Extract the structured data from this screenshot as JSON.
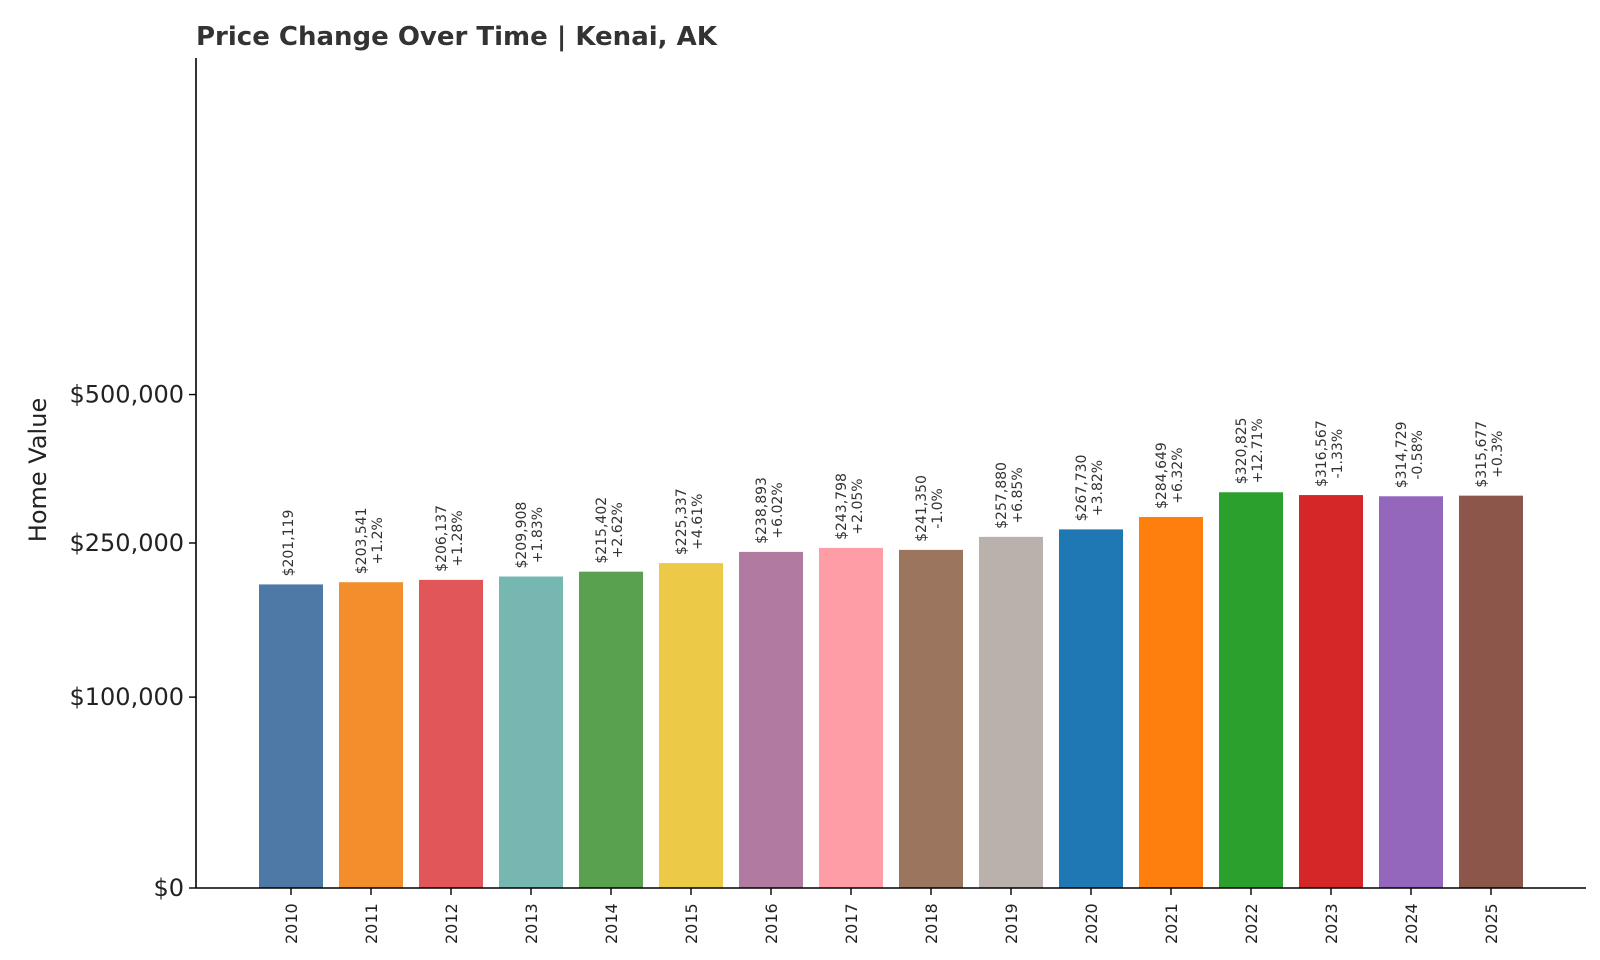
{
  "chart_data": {
    "type": "bar",
    "title": "Price Change Over Time | Kenai, AK",
    "ylabel": "Home Value",
    "xlabel": "",
    "ylim": [
      0,
      500000
    ],
    "yticks": [
      {
        "value": 0,
        "label": "$0"
      },
      {
        "value": 100000,
        "label": "$100,000"
      },
      {
        "value": 250000,
        "label": "$250,000"
      },
      {
        "value": 500000,
        "label": "$500,000"
      }
    ],
    "grid": false,
    "categories": [
      "2010",
      "2011",
      "2012",
      "2013",
      "2014",
      "2015",
      "2016",
      "2017",
      "2018",
      "2019",
      "2020",
      "2021",
      "2022",
      "2023",
      "2024",
      "2025"
    ],
    "values": [
      201119,
      203541,
      206137,
      209908,
      215402,
      225337,
      238893,
      243798,
      241350,
      257880,
      267730,
      284649,
      320825,
      316567,
      314729,
      315677
    ],
    "value_labels": [
      "$201,119",
      "$203,541",
      "$206,137",
      "$209,908",
      "$215,402",
      "$225,337",
      "$238,893",
      "$243,798",
      "$241,350",
      "$257,880",
      "$267,730",
      "$284,649",
      "$320,825",
      "$316,567",
      "$314,729",
      "$315,677"
    ],
    "change_labels": [
      "",
      "+1.2%",
      "+1.28%",
      "+1.83%",
      "+2.62%",
      "+4.61%",
      "+6.02%",
      "+2.05%",
      "-1.0%",
      "+6.85%",
      "+3.82%",
      "+6.32%",
      "+12.71%",
      "-1.33%",
      "-0.58%",
      "+0.3%"
    ],
    "colors": [
      "#4e79a7",
      "#f28e2b",
      "#e15759",
      "#76b7b2",
      "#59a14f",
      "#edc948",
      "#b07aa1",
      "#ff9da7",
      "#9c755f",
      "#bab0ac",
      "#1f77b4",
      "#ff7f0e",
      "#2ca02c",
      "#d62728",
      "#9467bd",
      "#8c564b"
    ]
  }
}
